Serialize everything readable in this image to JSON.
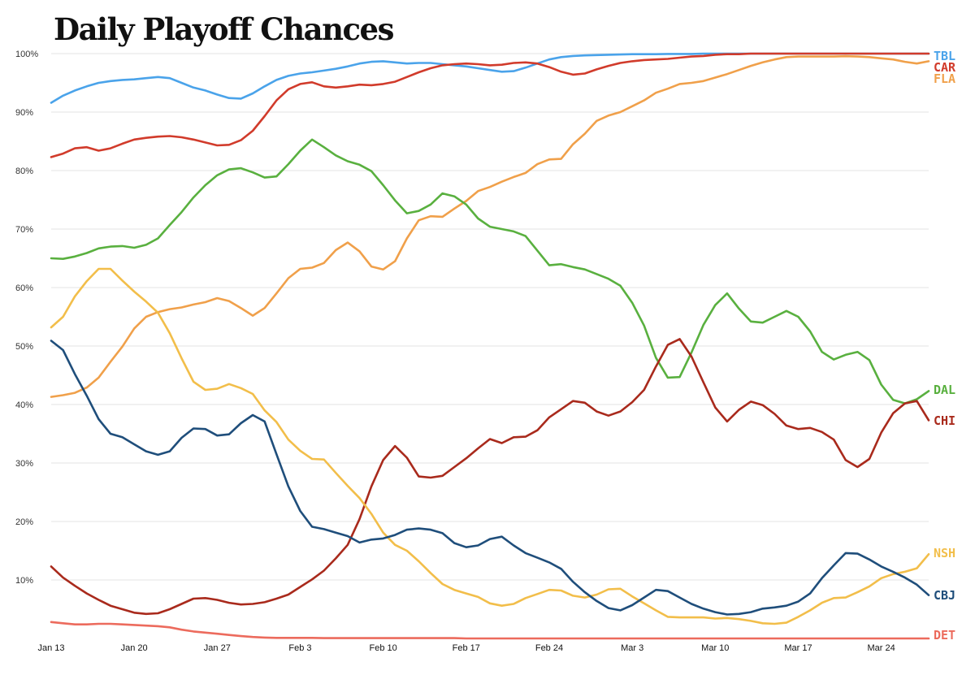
{
  "title": "Daily Playoff Chances",
  "chart_data": {
    "type": "line",
    "title": "Daily Playoff Chances",
    "xlabel": "",
    "ylabel": "",
    "ylim": [
      0,
      100
    ],
    "y_ticks": [
      "10%",
      "20%",
      "30%",
      "40%",
      "50%",
      "60%",
      "70%",
      "80%",
      "90%",
      "100%"
    ],
    "x_ticks": [
      "Jan 13",
      "Jan 20",
      "Jan 27",
      "Feb 3",
      "Feb 10",
      "Feb 17",
      "Feb 24",
      "Mar 3",
      "Mar 10",
      "Mar 17",
      "Mar 24"
    ],
    "x_dates": [
      "Jan 13",
      "Jan 14",
      "Jan 15",
      "Jan 16",
      "Jan 17",
      "Jan 18",
      "Jan 19",
      "Jan 20",
      "Jan 21",
      "Jan 22",
      "Jan 23",
      "Jan 24",
      "Jan 25",
      "Jan 26",
      "Jan 27",
      "Jan 28",
      "Jan 29",
      "Jan 30",
      "Jan 31",
      "Feb 1",
      "Feb 2",
      "Feb 3",
      "Feb 4",
      "Feb 5",
      "Feb 6",
      "Feb 7",
      "Feb 8",
      "Feb 9",
      "Feb 10",
      "Feb 11",
      "Feb 12",
      "Feb 13",
      "Feb 14",
      "Feb 15",
      "Feb 16",
      "Feb 17",
      "Feb 18",
      "Feb 19",
      "Feb 20",
      "Feb 21",
      "Feb 22",
      "Feb 23",
      "Feb 24",
      "Feb 25",
      "Feb 26",
      "Feb 27",
      "Feb 28",
      "Mar 1",
      "Mar 2",
      "Mar 3",
      "Mar 4",
      "Mar 5",
      "Mar 6",
      "Mar 7",
      "Mar 8",
      "Mar 9",
      "Mar 10",
      "Mar 11",
      "Mar 12",
      "Mar 13",
      "Mar 14",
      "Mar 15",
      "Mar 16",
      "Mar 17",
      "Mar 18",
      "Mar 19",
      "Mar 20",
      "Mar 21",
      "Mar 22",
      "Mar 23",
      "Mar 24",
      "Mar 25",
      "Mar 26",
      "Mar 27",
      "Mar 28"
    ],
    "grid": true,
    "legend": "series labels at right end of lines",
    "series": [
      {
        "name": "TBL",
        "color": "#4aa3ea",
        "values": [
          91.6,
          92.8,
          93.7,
          94.4,
          95.0,
          95.3,
          95.5,
          95.6,
          95.8,
          96.0,
          95.8,
          95.0,
          94.2,
          93.7,
          93.0,
          92.4,
          92.3,
          93.2,
          94.4,
          95.5,
          96.2,
          96.6,
          96.8,
          97.1,
          97.4,
          97.8,
          98.3,
          98.6,
          98.7,
          98.5,
          98.3,
          98.4,
          98.4,
          98.2,
          98.0,
          97.8,
          97.5,
          97.2,
          96.9,
          97.0,
          97.6,
          98.3,
          99.0,
          99.4,
          99.6,
          99.7,
          99.75,
          99.8,
          99.85,
          99.9,
          99.9,
          99.9,
          99.95,
          99.95,
          99.95,
          100,
          100,
          100,
          100,
          100,
          100,
          100,
          100,
          100,
          100,
          100,
          100,
          100,
          100,
          100,
          100,
          100,
          100,
          100,
          100
        ]
      },
      {
        "name": "CAR",
        "color": "#d13b2b",
        "values": [
          82.3,
          82.9,
          83.8,
          84.0,
          83.4,
          83.8,
          84.6,
          85.3,
          85.6,
          85.8,
          85.9,
          85.7,
          85.3,
          84.8,
          84.3,
          84.4,
          85.2,
          86.8,
          89.3,
          92.0,
          93.9,
          94.8,
          95.1,
          94.4,
          94.2,
          94.4,
          94.7,
          94.6,
          94.8,
          95.2,
          96.0,
          96.8,
          97.5,
          98.0,
          98.2,
          98.3,
          98.2,
          98.0,
          98.1,
          98.4,
          98.5,
          98.3,
          97.7,
          96.9,
          96.4,
          96.6,
          97.3,
          97.9,
          98.4,
          98.7,
          98.9,
          99.0,
          99.1,
          99.3,
          99.5,
          99.6,
          99.8,
          99.9,
          99.9,
          100,
          100,
          100,
          100,
          100,
          100,
          100,
          100,
          100,
          100,
          100,
          100,
          100,
          100,
          100,
          100
        ]
      },
      {
        "name": "FLA",
        "color": "#f0a04a",
        "values": [
          41.3,
          41.6,
          42.0,
          42.9,
          44.6,
          47.3,
          49.9,
          53.0,
          55.0,
          55.8,
          56.3,
          56.6,
          57.1,
          57.5,
          58.2,
          57.7,
          56.5,
          55.2,
          56.5,
          59.0,
          61.6,
          63.2,
          63.4,
          64.2,
          66.4,
          67.7,
          66.2,
          63.6,
          63.1,
          64.5,
          68.4,
          71.5,
          72.2,
          72.1,
          73.5,
          74.8,
          76.5,
          77.2,
          78.1,
          78.9,
          79.6,
          81.1,
          81.9,
          82.0,
          84.5,
          86.3,
          88.5,
          89.4,
          90.0,
          91.0,
          92.0,
          93.3,
          94.0,
          94.8,
          95.0,
          95.3,
          95.9,
          96.5,
          97.2,
          97.9,
          98.5,
          99.0,
          99.4,
          99.5,
          99.5,
          99.5,
          99.5,
          99.55,
          99.5,
          99.4,
          99.2,
          99.0,
          98.6,
          98.3,
          98.7
        ]
      },
      {
        "name": "DAL",
        "color": "#59b03f",
        "values": [
          65.0,
          64.9,
          65.3,
          65.9,
          66.7,
          67.0,
          67.1,
          66.8,
          67.3,
          68.4,
          70.7,
          72.9,
          75.4,
          77.5,
          79.2,
          80.2,
          80.4,
          79.7,
          78.8,
          79.0,
          81.1,
          83.4,
          85.3,
          84.0,
          82.6,
          81.6,
          81.0,
          79.9,
          77.5,
          74.9,
          72.7,
          73.1,
          74.2,
          76.1,
          75.6,
          74.2,
          71.8,
          70.4,
          70.0,
          69.6,
          68.8,
          66.3,
          63.8,
          64.0,
          63.5,
          63.1,
          62.3,
          61.5,
          60.3,
          57.4,
          53.5,
          48.0,
          44.6,
          44.7,
          48.9,
          53.6,
          57.0,
          59.0,
          56.4,
          54.2,
          54.0,
          55.0,
          56.0,
          55.0,
          52.5,
          49.0,
          47.7,
          48.5,
          49.0,
          47.6,
          43.4,
          40.8,
          40.2,
          40.9,
          42.3
        ]
      },
      {
        "name": "CHI",
        "color": "#a92a1c",
        "values": [
          12.3,
          10.4,
          9.0,
          7.7,
          6.6,
          5.6,
          5.0,
          4.4,
          4.2,
          4.3,
          5.0,
          5.9,
          6.8,
          6.9,
          6.6,
          6.1,
          5.8,
          5.9,
          6.2,
          6.8,
          7.5,
          8.8,
          10.1,
          11.6,
          13.7,
          16.0,
          20.4,
          26.0,
          30.5,
          32.9,
          30.9,
          27.7,
          27.5,
          27.8,
          29.3,
          30.8,
          32.5,
          34.1,
          33.4,
          34.4,
          34.5,
          35.6,
          37.8,
          39.2,
          40.6,
          40.3,
          38.8,
          38.1,
          38.8,
          40.4,
          42.5,
          46.5,
          50.2,
          51.2,
          48.2,
          43.8,
          39.5,
          37.1,
          39.1,
          40.5,
          39.9,
          38.4,
          36.4,
          35.8,
          36.0,
          35.3,
          34.0,
          30.5,
          29.3,
          30.7,
          35.2,
          38.5,
          40.2,
          40.6,
          37.3
        ]
      },
      {
        "name": "NSH",
        "color": "#f2be4a",
        "values": [
          53.2,
          55.0,
          58.5,
          61.1,
          63.2,
          63.2,
          61.2,
          59.3,
          57.6,
          55.7,
          52.2,
          47.9,
          43.9,
          42.5,
          42.7,
          43.5,
          42.8,
          41.8,
          39.0,
          37.0,
          34.0,
          32.1,
          30.7,
          30.6,
          28.3,
          26.1,
          24.0,
          21.3,
          18.1,
          16.0,
          15.0,
          13.2,
          11.2,
          9.3,
          8.3,
          7.7,
          7.1,
          6.0,
          5.6,
          5.9,
          6.9,
          7.6,
          8.3,
          8.2,
          7.3,
          7.0,
          7.5,
          8.4,
          8.5,
          7.2,
          6.0,
          4.8,
          3.7,
          3.6,
          3.6,
          3.6,
          3.4,
          3.5,
          3.3,
          3.0,
          2.6,
          2.5,
          2.7,
          3.7,
          4.8,
          6.1,
          6.9,
          7.0,
          7.9,
          8.9,
          10.3,
          11.0,
          11.4,
          12.0,
          14.4
        ]
      },
      {
        "name": "CBJ",
        "color": "#1f4e7b",
        "values": [
          50.9,
          49.3,
          45.2,
          41.5,
          37.5,
          35.0,
          34.4,
          33.2,
          32.0,
          31.4,
          32.0,
          34.3,
          35.9,
          35.8,
          34.7,
          34.9,
          36.8,
          38.2,
          37.1,
          31.5,
          26.0,
          21.8,
          19.1,
          18.7,
          18.1,
          17.5,
          16.4,
          16.9,
          17.1,
          17.7,
          18.6,
          18.8,
          18.6,
          18.0,
          16.3,
          15.6,
          15.9,
          17.0,
          17.4,
          15.9,
          14.6,
          13.8,
          13.0,
          11.9,
          9.7,
          7.9,
          6.4,
          5.2,
          4.8,
          5.7,
          7.0,
          8.3,
          8.1,
          7.0,
          5.9,
          5.1,
          4.5,
          4.1,
          4.2,
          4.5,
          5.1,
          5.3,
          5.6,
          6.3,
          7.7,
          10.3,
          12.5,
          14.6,
          14.5,
          13.5,
          12.3,
          11.4,
          10.4,
          9.2,
          7.4
        ]
      },
      {
        "name": "DET",
        "color": "#ec6b5d",
        "values": [
          2.8,
          2.6,
          2.4,
          2.4,
          2.5,
          2.5,
          2.4,
          2.3,
          2.2,
          2.1,
          1.9,
          1.5,
          1.2,
          1.0,
          0.8,
          0.6,
          0.4,
          0.25,
          0.15,
          0.1,
          0.1,
          0.1,
          0.1,
          0.05,
          0.05,
          0.05,
          0.05,
          0.05,
          0.05,
          0.05,
          0.05,
          0.05,
          0.05,
          0.05,
          0.05,
          0,
          0,
          0,
          0,
          0,
          0,
          0,
          0,
          0,
          0,
          0,
          0,
          0,
          0,
          0,
          0,
          0,
          0,
          0,
          0,
          0,
          0,
          0,
          0,
          0,
          0,
          0,
          0,
          0,
          0,
          0,
          0,
          0,
          0,
          0,
          0,
          0,
          0,
          0,
          0
        ]
      }
    ]
  }
}
